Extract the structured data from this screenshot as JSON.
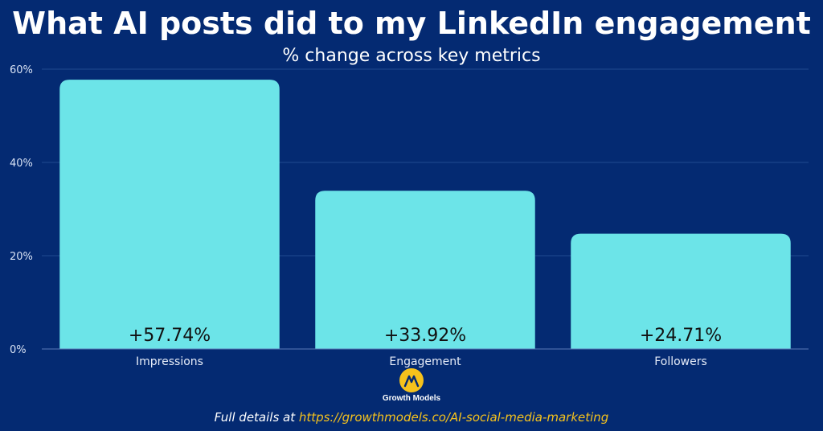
{
  "chart_data": {
    "type": "bar",
    "title": "What AI posts did to my LinkedIn engagement",
    "subtitle": "% change across key metrics",
    "categories": [
      "Impressions",
      "Engagement",
      "Followers"
    ],
    "values": [
      57.74,
      33.92,
      24.71
    ],
    "data_labels": [
      "+57.74%",
      "+33.92%",
      "+24.71%"
    ],
    "yticks": [
      "0%",
      "20%",
      "40%",
      "60%"
    ],
    "ytick_values": [
      0,
      20,
      40,
      60
    ],
    "ylim": [
      0,
      60
    ],
    "grid": true,
    "legend": "none",
    "bar_color": "#6ce4e8",
    "gridline_color": "#1f4a90"
  },
  "logo": {
    "text": "Growth Models",
    "icon": "growth-models-logo-icon",
    "color": "#f6c21c"
  },
  "footer": {
    "prefix": "Full details at ",
    "link": "https://growthmodels.co/AI-social-media-marketing",
    "link_color": "#f6c21c"
  },
  "background": "#042a72"
}
